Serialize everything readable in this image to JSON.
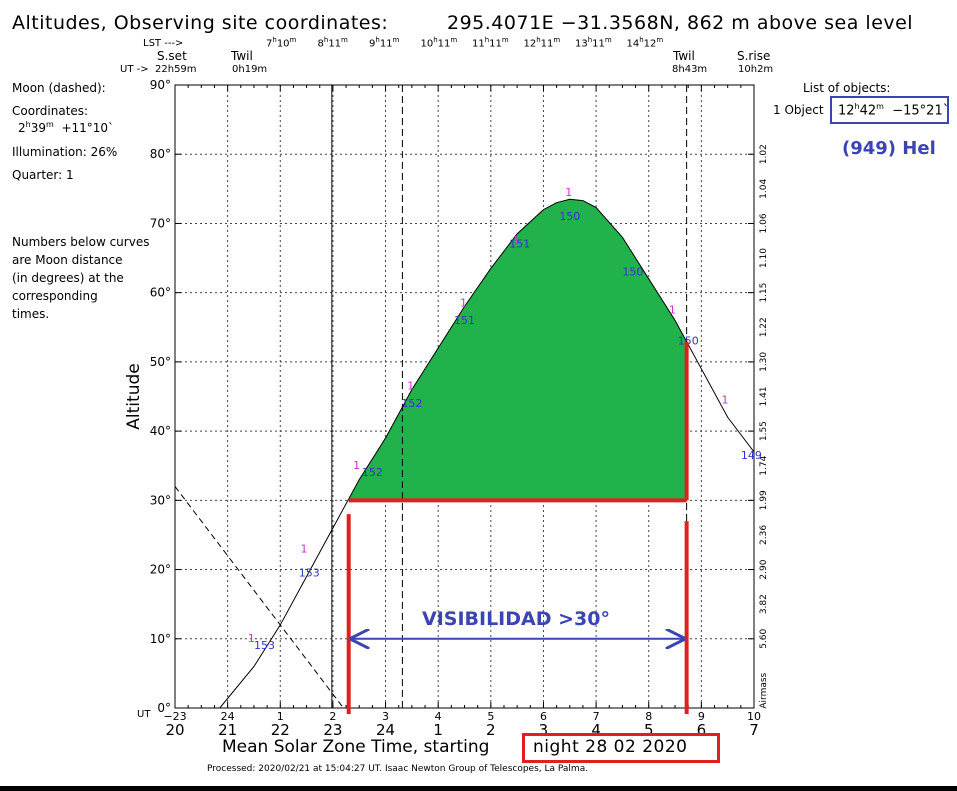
{
  "header": {
    "title": "Altitudes, Observing site coordinates:",
    "coords": "295.4071E −31.3568N,  862 m above sea level"
  },
  "top_axis": {
    "lst_label": "LST --->",
    "ut_label": "UT ->",
    "sset_label": "S.set",
    "sset_time": "22h59m",
    "twil_label": "Twil",
    "twil_start": "0h19m",
    "twil_end_label": "Twil",
    "twil_end": "8h43m",
    "srise_label": "S.rise",
    "srise_time": "10h2m",
    "lst_ticks": [
      {
        "h": "7",
        "m": "10"
      },
      {
        "h": "8",
        "m": "11"
      },
      {
        "h": "9",
        "m": "11"
      },
      {
        "h": "10",
        "m": "11"
      },
      {
        "h": "11",
        "m": "11"
      },
      {
        "h": "12",
        "m": "11"
      },
      {
        "h": "13",
        "m": "11"
      },
      {
        "h": "14",
        "m": "12"
      }
    ]
  },
  "left_panel": {
    "moon": "Moon (dashed):",
    "coords_label": "Coordinates:",
    "coords_ra_h": "2",
    "coords_ra_m": "39",
    "coords_dec": "+11°10`",
    "illumination": "Illumination:  26%",
    "quarter": "Quarter: 1",
    "note": [
      "Numbers below curves",
      "are Moon distance",
      "(in degrees) at the",
      "corresponding",
      "times."
    ]
  },
  "right_panel": {
    "list_title": "List of objects:",
    "object_label": "1 Object",
    "object_ra_h": "12",
    "object_ra_m": "42",
    "object_dec": "−15°21`",
    "object_name": "(949) Hel"
  },
  "footer": {
    "xlabel_prefix": "Mean Solar Zone Time, starting",
    "date": "night 28 02 2020",
    "processed": "Processed: 2020/02/21 at 15:04:27 UT. Isaac  Newton Group of Telescopes, La Palma.",
    "ut_prefix": "UT"
  },
  "annotation": {
    "text": "VISIBILIDAD >30°",
    "threshold_deg": 30
  },
  "colors": {
    "fill": "#22b24c",
    "highlight": "#e02020",
    "annotation": "#3b44b3",
    "moon_label": "#d12fd1",
    "moon_distance": "#3333cc"
  },
  "chart_data": {
    "type": "line",
    "title": "Altitudes, Observing site coordinates: 295.4071E −31.3568N, 862 m above sea level",
    "xlabel": "Mean Solar Zone Time, starting night 28 02 2020",
    "ylabel": "Altitude",
    "y2label": "Airmass",
    "xlim": [
      20,
      31
    ],
    "ylim": [
      0,
      90
    ],
    "y_ticks": [
      0,
      10,
      20,
      30,
      40,
      50,
      60,
      70,
      80,
      90
    ],
    "y_tick_labels": [
      "0°",
      "10°",
      "20°",
      "30°",
      "40°",
      "50°",
      "60°",
      "70°",
      "80°",
      "90°"
    ],
    "x_ticks": [
      20,
      21,
      22,
      23,
      24,
      25,
      26,
      27,
      28,
      29,
      30,
      31
    ],
    "local_tick_labels": [
      "20",
      "21",
      "22",
      "23",
      "24",
      "1",
      "2",
      "3",
      "4",
      "5",
      "6",
      "7"
    ],
    "ut_tick_labels": [
      "−23",
      "24",
      "1",
      "2",
      "3",
      "4",
      "5",
      "6",
      "7",
      "8",
      "9",
      "10"
    ],
    "airmass_labels": [
      {
        "alt": 2.5,
        "label": "Airmass"
      },
      {
        "alt": 10,
        "label": "5.60"
      },
      {
        "alt": 15,
        "label": "3.82"
      },
      {
        "alt": 20,
        "label": "2.90"
      },
      {
        "alt": 25,
        "label": "2.36"
      },
      {
        "alt": 30,
        "label": "1.99"
      },
      {
        "alt": 35,
        "label": "1.74"
      },
      {
        "alt": 40,
        "label": "1.55"
      },
      {
        "alt": 45,
        "label": "1.41"
      },
      {
        "alt": 50,
        "label": "1.30"
      },
      {
        "alt": 55,
        "label": "1.22"
      },
      {
        "alt": 60,
        "label": "1.15"
      },
      {
        "alt": 65,
        "label": "1.10"
      },
      {
        "alt": 70,
        "label": "1.06"
      },
      {
        "alt": 75,
        "label": "1.04"
      },
      {
        "alt": 80,
        "label": "1.02"
      }
    ],
    "events": {
      "sunset": 22.98,
      "twilight_start": 24.32,
      "twilight_end": 29.72,
      "sunrise": 31.03
    },
    "series": [
      {
        "name": "(949) Hel",
        "style": "solid",
        "points": [
          [
            20.85,
            0
          ],
          [
            21.5,
            6
          ],
          [
            22,
            12
          ],
          [
            22.5,
            19
          ],
          [
            23,
            26
          ],
          [
            23.5,
            33
          ],
          [
            24,
            39
          ],
          [
            24.5,
            46
          ],
          [
            25,
            52
          ],
          [
            25.5,
            58
          ],
          [
            26,
            63.5
          ],
          [
            26.5,
            68.5
          ],
          [
            27,
            72
          ],
          [
            27.25,
            73
          ],
          [
            27.5,
            73.5
          ],
          [
            27.75,
            73.3
          ],
          [
            28,
            72.3
          ],
          [
            28.5,
            68
          ],
          [
            29,
            62
          ],
          [
            29.5,
            56
          ],
          [
            30,
            49
          ],
          [
            30.5,
            42
          ],
          [
            31,
            37
          ]
        ]
      },
      {
        "name": "Moon",
        "style": "dashed",
        "points": [
          [
            20,
            32
          ],
          [
            21,
            22
          ],
          [
            22,
            12
          ],
          [
            22.5,
            7
          ],
          [
            23,
            2
          ],
          [
            23.2,
            0
          ]
        ]
      }
    ],
    "visibility_window": {
      "start": 23.3,
      "end": 29.72,
      "min_alt": 30
    },
    "object_markers": [
      {
        "x": 21.45,
        "y": 9.5,
        "label": "1"
      },
      {
        "x": 22.45,
        "y": 22.5,
        "label": "1"
      },
      {
        "x": 23.45,
        "y": 34.5,
        "label": "1"
      },
      {
        "x": 24.48,
        "y": 46,
        "label": "1"
      },
      {
        "x": 25.48,
        "y": 58,
        "label": "1"
      },
      {
        "x": 26.48,
        "y": 67,
        "label": "1"
      },
      {
        "x": 27.48,
        "y": 74,
        "label": "1"
      },
      {
        "x": 29.45,
        "y": 57,
        "label": "1"
      },
      {
        "x": 30.45,
        "y": 44,
        "label": "1"
      }
    ],
    "moon_distances": [
      {
        "x": 21.7,
        "y": 8.5,
        "label": "153"
      },
      {
        "x": 22.55,
        "y": 19,
        "label": "153"
      },
      {
        "x": 23.75,
        "y": 33.5,
        "label": "152"
      },
      {
        "x": 24.5,
        "y": 43.5,
        "label": "152"
      },
      {
        "x": 25.5,
        "y": 55.5,
        "label": "151"
      },
      {
        "x": 26.55,
        "y": 66.5,
        "label": "151"
      },
      {
        "x": 27.5,
        "y": 70.5,
        "label": "150"
      },
      {
        "x": 28.7,
        "y": 62.5,
        "label": "150"
      },
      {
        "x": 29.75,
        "y": 52.5,
        "label": "150"
      },
      {
        "x": 30.95,
        "y": 36,
        "label": "149"
      }
    ]
  }
}
